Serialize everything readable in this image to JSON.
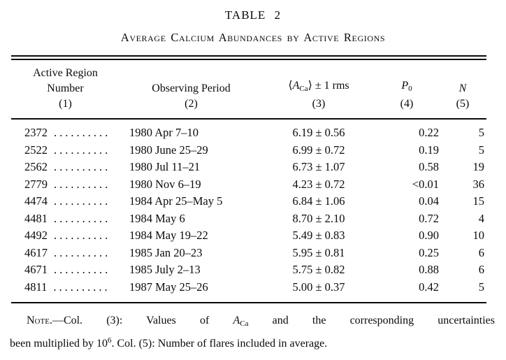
{
  "title": "TABLE 2",
  "subtitle": "Average Calcium Abundances by Active Regions",
  "header": {
    "col1_line1": "Active Region",
    "col1_line2": "Number",
    "col1_num": "(1)",
    "col2_label": "Observing Period",
    "col2_num": "(2)",
    "col3": {
      "lang": "⟨",
      "sym": "A",
      "sub": "Ca",
      "rang": "⟩",
      "rest": " ± 1 rms"
    },
    "col3_num": "(3)",
    "col4": {
      "sym": "P",
      "sub": "0"
    },
    "col4_num": "(4)",
    "col5_label": "N",
    "col5_num": "(5)"
  },
  "leader_dots": "..........",
  "rows": [
    {
      "region": "2372",
      "period": "1980 Apr 7–10",
      "value": "6.19 ± 0.56",
      "p0": "0.22",
      "n": "5"
    },
    {
      "region": "2522",
      "period": "1980 June 25–29",
      "value": "6.99 ± 0.72",
      "p0": "0.19",
      "n": "5"
    },
    {
      "region": "2562",
      "period": "1980 Jul 11–21",
      "value": "6.73 ± 1.07",
      "p0": "0.58",
      "n": "19"
    },
    {
      "region": "2779",
      "period": "1980 Nov 6–19",
      "value": "4.23 ± 0.72",
      "p0": "<0.01",
      "n": "36"
    },
    {
      "region": "4474",
      "period": "1984 Apr 25–May 5",
      "value": "6.84 ± 1.06",
      "p0": "0.04",
      "n": "15"
    },
    {
      "region": "4481",
      "period": "1984 May 6",
      "value": "8.70 ± 2.10",
      "p0": "0.72",
      "n": "4"
    },
    {
      "region": "4492",
      "period": "1984 May 19–22",
      "value": "5.49 ± 0.83",
      "p0": "0.90",
      "n": "10"
    },
    {
      "region": "4617",
      "period": "1985 Jan 20–23",
      "value": "5.95 ± 0.81",
      "p0": "0.25",
      "n": "6"
    },
    {
      "region": "4671",
      "period": "1985 July 2–13",
      "value": "5.75 ± 0.82",
      "p0": "0.88",
      "n": "6"
    },
    {
      "region": "4811",
      "period": "1987 May 25–26",
      "value": "5.00 ± 0.37",
      "p0": "0.42",
      "n": "5"
    }
  ],
  "note": {
    "label": "Note",
    "t1": ".—Col. (3): Values of ",
    "sym": "A",
    "sym_sub": "Ca",
    "t2": " and the corresponding uncertainties",
    "l2a": "been multiplied by 10",
    "sup": "6",
    "t3": ". Col. (5): Number of flares included in average."
  }
}
